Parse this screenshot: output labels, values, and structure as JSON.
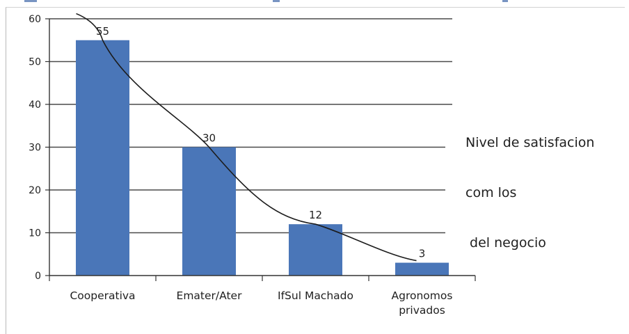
{
  "chart_data": {
    "type": "bar",
    "categories": [
      "Cooperativa",
      "Emater/Ater",
      "IfSul Machado",
      "Agronomos privados"
    ],
    "category_lines": [
      [
        "Cooperativa"
      ],
      [
        "Emater/Ater"
      ],
      [
        "IfSul Machado"
      ],
      [
        "Agronomos",
        "privados"
      ]
    ],
    "values": [
      55,
      30,
      12,
      3
    ],
    "data_labels": [
      "55",
      "30",
      "12",
      "3"
    ],
    "ylim": [
      0,
      60
    ],
    "yticks": [
      0,
      10,
      20,
      30,
      40,
      50,
      60
    ],
    "ytick_labels": [
      "0",
      "10",
      "20",
      "30",
      "40",
      "50",
      "60"
    ],
    "grid": true,
    "trendline": true,
    "bar_color": "#4a76b8",
    "trend_color": "#1c1c1c",
    "grid_color": "#4a4a4a",
    "text_color": "#1f1f1f",
    "side_label": {
      "lines": [
        "Nivel de satisfacion",
        "com los",
        " del negocio"
      ]
    }
  }
}
